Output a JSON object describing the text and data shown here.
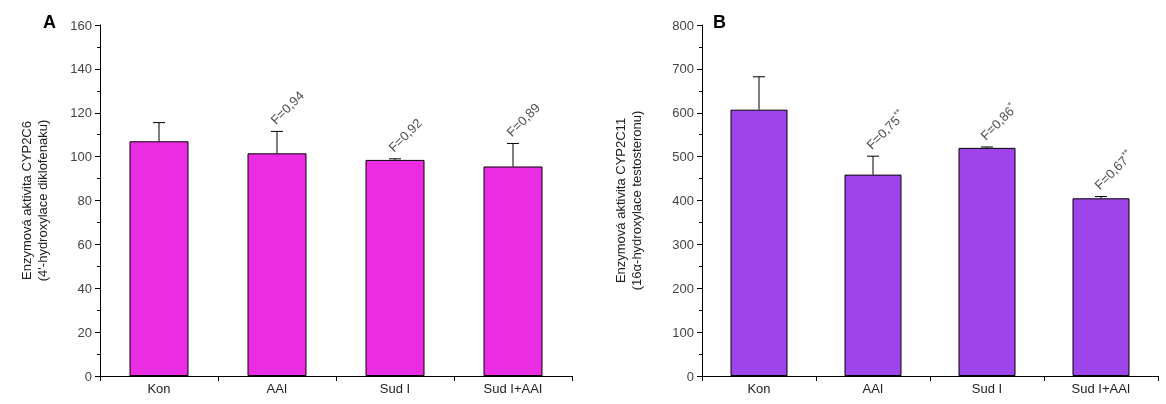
{
  "chart_data": [
    {
      "type": "bar",
      "title": "A",
      "ylabel": "Enzymová aktivita CYP2C6\n(4'-hydroxylace diklofenaku)",
      "categories": [
        "Kon",
        "AAI",
        "Sud I",
        "Sud I+AAI"
      ],
      "values": [
        107,
        101.5,
        98.5,
        95.5
      ],
      "color": "#ea2ce3",
      "errors": [
        [
          107,
          115.5
        ],
        [
          101.5,
          111.5
        ],
        [
          98.5,
          99
        ],
        [
          95.5,
          106
        ]
      ],
      "ylim": [
        0,
        160
      ],
      "yticks": [
        0,
        20,
        40,
        60,
        80,
        100,
        120,
        140,
        160
      ],
      "grid": false,
      "annotations": [
        {
          "text": "F=0,94",
          "x": "AAI",
          "y": 111.5
        },
        {
          "text": "F=0,92",
          "x": "Sud I",
          "y": 99
        },
        {
          "text": "F=0,89",
          "x": "Sud I+AAI",
          "y": 106
        }
      ]
    },
    {
      "type": "bar",
      "title": "B",
      "ylabel": "Enzymová aktivita CYP2C11\n(16α-hydroxylace testosteronu)",
      "categories": [
        "Kon",
        "AAI",
        "Sud I",
        "Sud I+AAI"
      ],
      "values": [
        607,
        459,
        520,
        405
      ],
      "color": "#9d44ea",
      "errors": [
        [
          607,
          682
        ],
        [
          459,
          501
        ],
        [
          520,
          522
        ],
        [
          405,
          409
        ]
      ],
      "ylim": [
        0,
        800
      ],
      "yticks": [
        0,
        100,
        200,
        300,
        400,
        500,
        600,
        700,
        800
      ],
      "grid": false,
      "annotations": [
        {
          "text": "F=0,75$^{**}$",
          "x": "AAI",
          "y": 501
        },
        {
          "text": "F=0,86$^{*}$",
          "x": "Sud I",
          "y": 522
        },
        {
          "text": "F=0,67$^{**}$",
          "x": "Sud I+AAI",
          "y": 409
        }
      ]
    }
  ]
}
